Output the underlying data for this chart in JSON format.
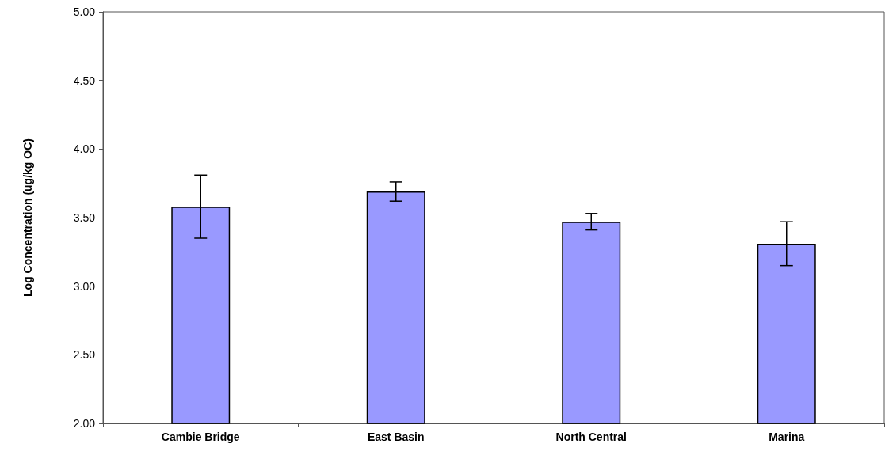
{
  "chart_data": {
    "type": "bar",
    "ylabel": "Log Concentration (ug/kg OC)",
    "categories": [
      "Cambie Bridge",
      "East Basin",
      "North Central",
      "Marina"
    ],
    "values": [
      3.58,
      3.69,
      3.47,
      3.31
    ],
    "errors": [
      0.23,
      0.07,
      0.06,
      0.16
    ],
    "color": "#9999ff",
    "ylim": [
      2,
      5
    ],
    "yticks": [
      {
        "value": 2,
        "label": "2.00"
      },
      {
        "value": 2.5,
        "label": "2.50"
      },
      {
        "value": 3,
        "label": "3.00"
      },
      {
        "value": 3.5,
        "label": "3.50"
      },
      {
        "value": 4,
        "label": "4.00"
      },
      {
        "value": 4.5,
        "label": "4.50"
      },
      {
        "value": 5,
        "label": "5.00"
      }
    ],
    "grid": false
  }
}
